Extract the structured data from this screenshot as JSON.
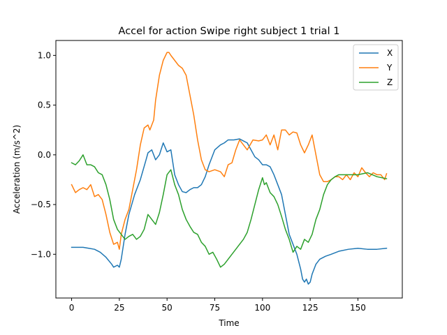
{
  "chart_data": {
    "type": "line",
    "title": "Accel for action Swipe right subject 1 trial 1",
    "xlabel": "Time",
    "ylabel": "Acceleration (m/s^2)",
    "xlim": [
      -8.25,
      173.25
    ],
    "ylim": [
      -1.44,
      1.15
    ],
    "xticks": [
      0,
      25,
      50,
      75,
      100,
      125,
      150
    ],
    "yticks": [
      -1.0,
      -0.5,
      0.0,
      0.5,
      1.0
    ],
    "ytick_labels": [
      "−1.0",
      "−0.5",
      "0.0",
      "0.5",
      "1.0"
    ],
    "legend_position": "top-right",
    "series": [
      {
        "name": "X",
        "color": "#1f77b4",
        "x": [
          0,
          3,
          6,
          9,
          12,
          15,
          18,
          21,
          22,
          24,
          25,
          26,
          28,
          30,
          33,
          36,
          39,
          40,
          42,
          44,
          46,
          48,
          50,
          52,
          54,
          56,
          58,
          60,
          62,
          64,
          66,
          68,
          70,
          72,
          75,
          78,
          80,
          82,
          85,
          88,
          90,
          92,
          94,
          96,
          98,
          100,
          102,
          104,
          106,
          108,
          110,
          112,
          114,
          116,
          118,
          120,
          121,
          122,
          123,
          124,
          125,
          126,
          128,
          130,
          133,
          136,
          140,
          145,
          150,
          155,
          160,
          165
        ],
        "y": [
          -0.93,
          -0.93,
          -0.93,
          -0.94,
          -0.95,
          -0.98,
          -1.03,
          -1.1,
          -1.13,
          -1.11,
          -1.13,
          -1.05,
          -0.8,
          -0.6,
          -0.4,
          -0.25,
          -0.05,
          0.02,
          0.05,
          -0.05,
          0.0,
          0.12,
          0.03,
          0.05,
          -0.2,
          -0.3,
          -0.37,
          -0.38,
          -0.35,
          -0.33,
          -0.33,
          -0.3,
          -0.22,
          -0.1,
          0.05,
          0.1,
          0.12,
          0.15,
          0.15,
          0.16,
          0.14,
          0.12,
          0.05,
          -0.02,
          -0.05,
          -0.1,
          -0.1,
          -0.12,
          -0.2,
          -0.3,
          -0.4,
          -0.6,
          -0.8,
          -0.9,
          -1.0,
          -1.15,
          -1.25,
          -1.28,
          -1.25,
          -1.3,
          -1.28,
          -1.2,
          -1.1,
          -1.05,
          -1.02,
          -1.0,
          -0.97,
          -0.95,
          -0.94,
          -0.95,
          -0.95,
          -0.94
        ]
      },
      {
        "name": "Y",
        "color": "#ff7f0e",
        "x": [
          0,
          2,
          4,
          6,
          8,
          10,
          12,
          14,
          16,
          18,
          20,
          22,
          24,
          25,
          26,
          28,
          30,
          32,
          34,
          36,
          38,
          40,
          41,
          42,
          43,
          44,
          46,
          48,
          50,
          51,
          52,
          54,
          56,
          58,
          60,
          62,
          64,
          66,
          68,
          70,
          72,
          75,
          78,
          80,
          82,
          84,
          86,
          88,
          90,
          92,
          95,
          98,
          100,
          102,
          104,
          106,
          108,
          110,
          112,
          114,
          116,
          118,
          120,
          122,
          124,
          126,
          128,
          130,
          132,
          134,
          136,
          138,
          140,
          142,
          144,
          146,
          148,
          150,
          152,
          154,
          156,
          158,
          160,
          162,
          164,
          165
        ],
        "y": [
          -0.3,
          -0.38,
          -0.35,
          -0.33,
          -0.35,
          -0.3,
          -0.42,
          -0.4,
          -0.45,
          -0.6,
          -0.78,
          -0.9,
          -0.88,
          -0.95,
          -0.8,
          -0.65,
          -0.55,
          -0.35,
          -0.15,
          0.1,
          0.27,
          0.3,
          0.25,
          0.3,
          0.35,
          0.55,
          0.8,
          0.95,
          1.03,
          1.03,
          1.0,
          0.95,
          0.9,
          0.87,
          0.8,
          0.6,
          0.4,
          0.15,
          -0.05,
          -0.15,
          -0.17,
          -0.15,
          -0.17,
          -0.22,
          -0.1,
          -0.08,
          0.05,
          0.15,
          0.1,
          0.05,
          0.15,
          0.14,
          0.15,
          0.2,
          0.1,
          0.2,
          0.05,
          0.25,
          0.25,
          0.2,
          0.23,
          0.22,
          0.1,
          0.02,
          0.1,
          0.2,
          0.0,
          -0.2,
          -0.27,
          -0.27,
          -0.25,
          -0.22,
          -0.22,
          -0.25,
          -0.2,
          -0.25,
          -0.18,
          -0.22,
          -0.13,
          -0.18,
          -0.22,
          -0.18,
          -0.2,
          -0.2,
          -0.25,
          -0.19
        ]
      },
      {
        "name": "Z",
        "color": "#2ca02c",
        "x": [
          0,
          2,
          4,
          6,
          8,
          10,
          12,
          14,
          16,
          18,
          20,
          22,
          24,
          26,
          28,
          30,
          32,
          34,
          36,
          38,
          40,
          42,
          44,
          46,
          48,
          50,
          52,
          54,
          56,
          58,
          60,
          62,
          64,
          66,
          68,
          70,
          72,
          74,
          76,
          78,
          80,
          82,
          84,
          86,
          88,
          90,
          92,
          94,
          96,
          98,
          100,
          101,
          102,
          104,
          106,
          108,
          110,
          112,
          114,
          116,
          118,
          120,
          122,
          124,
          126,
          128,
          130,
          132,
          134,
          136,
          138,
          140,
          145,
          150,
          155,
          160,
          165
        ],
        "y": [
          -0.08,
          -0.1,
          -0.06,
          0.0,
          -0.1,
          -0.1,
          -0.12,
          -0.18,
          -0.2,
          -0.3,
          -0.45,
          -0.65,
          -0.75,
          -0.8,
          -0.85,
          -0.82,
          -0.8,
          -0.85,
          -0.82,
          -0.75,
          -0.6,
          -0.65,
          -0.7,
          -0.58,
          -0.4,
          -0.2,
          -0.15,
          -0.3,
          -0.4,
          -0.55,
          -0.65,
          -0.72,
          -0.78,
          -0.8,
          -0.88,
          -0.92,
          -1.0,
          -0.98,
          -1.05,
          -1.13,
          -1.1,
          -1.05,
          -1.0,
          -0.95,
          -0.9,
          -0.85,
          -0.78,
          -0.65,
          -0.5,
          -0.35,
          -0.23,
          -0.3,
          -0.28,
          -0.38,
          -0.42,
          -0.5,
          -0.62,
          -0.75,
          -0.85,
          -0.98,
          -0.92,
          -0.95,
          -0.85,
          -0.88,
          -0.8,
          -0.65,
          -0.55,
          -0.4,
          -0.3,
          -0.25,
          -0.22,
          -0.2,
          -0.2,
          -0.2,
          -0.18,
          -0.22,
          -0.24
        ]
      }
    ]
  }
}
